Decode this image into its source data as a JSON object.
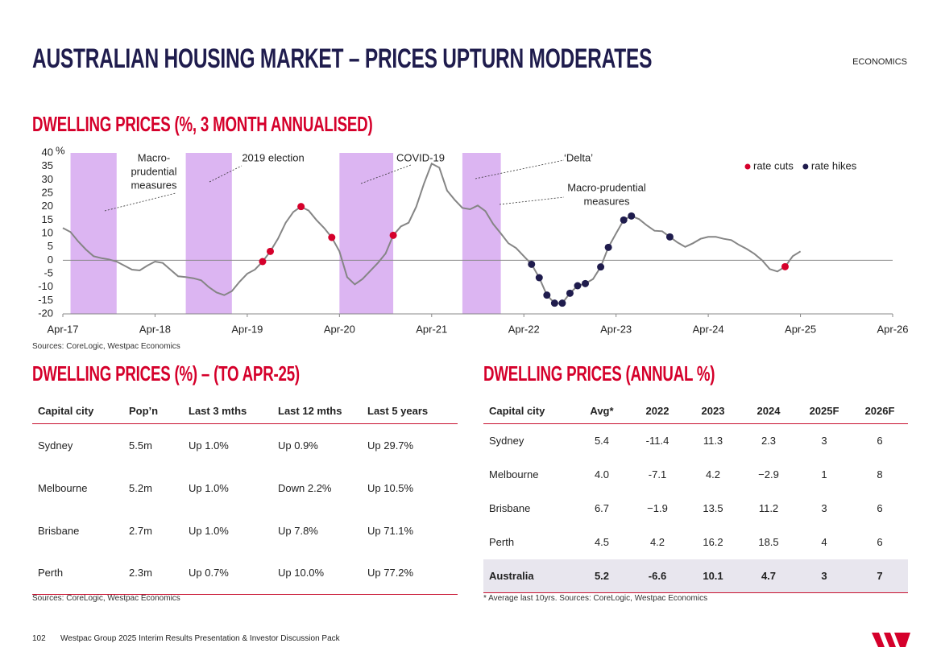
{
  "header": {
    "title": "AUSTRALIAN HOUSING MARKET – PRICES UPTURN MODERATES",
    "section": "ECONOMICS"
  },
  "chart_data": {
    "type": "line",
    "title": "DWELLING PRICES (%, 3 MONTH ANNUALISED)",
    "ylabel": "%",
    "source": "Sources: CoreLogic, Westpac Economics",
    "categories": [
      "Apr-17",
      null,
      null,
      null,
      null,
      null,
      null,
      null,
      null,
      null,
      null,
      null,
      "Apr-18",
      null,
      null,
      null,
      null,
      null,
      null,
      null,
      null,
      null,
      null,
      null,
      "Apr-19",
      null,
      null,
      null,
      null,
      null,
      null,
      null,
      null,
      null,
      null,
      null,
      "Apr-20",
      null,
      null,
      null,
      null,
      null,
      null,
      null,
      null,
      null,
      null,
      null,
      "Apr-21",
      null,
      null,
      null,
      null,
      null,
      null,
      null,
      null,
      null,
      null,
      null,
      "Apr-22",
      null,
      null,
      null,
      null,
      null,
      null,
      null,
      null,
      null,
      null,
      null,
      "Apr-23",
      null,
      null,
      null,
      null,
      null,
      null,
      null,
      null,
      null,
      null,
      null,
      "Apr-24",
      null,
      null,
      null,
      null,
      null,
      null,
      null,
      null,
      null,
      null,
      null,
      "Apr-25",
      null,
      null,
      null,
      null,
      null,
      null,
      null,
      null,
      null,
      null,
      null,
      "Apr-26"
    ],
    "series": [
      {
        "color": "#858585",
        "style": "line",
        "values": [
          12,
          10.5,
          7,
          4,
          1.5,
          0.8,
          0.3,
          -0.5,
          -2,
          -3.5,
          -3.8,
          -2,
          -0.5,
          -1,
          -3.5,
          -6,
          -6.3,
          -6.7,
          -7.5,
          -10,
          -12,
          -13,
          -11.5,
          -8,
          -5,
          -3.5,
          -0.5,
          3.3,
          8,
          14,
          18,
          20,
          18.5,
          15,
          12,
          8.5,
          3.3,
          -6.3,
          -9,
          -7,
          -4,
          -1,
          2.5,
          9.3,
          12.6,
          14,
          20,
          28.5,
          36,
          34.5,
          26,
          22.5,
          19.5,
          19,
          20.4,
          18.3,
          13.5,
          10,
          6.3,
          4.5,
          1.5,
          -1.5,
          -6.5,
          -13,
          -16,
          -16,
          -12.3,
          -9.5,
          -8.7,
          -7,
          -2.5,
          4.8,
          10,
          15,
          16.5,
          15.3,
          13,
          11,
          10.8,
          8.7,
          6.6,
          5,
          6.3,
          8,
          8.7,
          8.7,
          8,
          7.5,
          5.7,
          4.2,
          2.4,
          0,
          -3.3,
          -4.2,
          -2.4,
          1.5,
          3.3,
          null,
          null,
          null,
          null,
          null,
          null,
          null,
          null,
          null,
          null,
          null,
          null
        ]
      },
      {
        "name": "rate cuts",
        "color": "#d5002b",
        "style": "dots",
        "values": [
          null,
          null,
          null,
          null,
          null,
          null,
          null,
          null,
          null,
          null,
          null,
          null,
          null,
          null,
          null,
          null,
          null,
          null,
          null,
          null,
          null,
          null,
          null,
          null,
          null,
          null,
          -0.5,
          3.3,
          null,
          null,
          null,
          20,
          null,
          null,
          null,
          8.5,
          null,
          null,
          null,
          null,
          null,
          null,
          null,
          9.3,
          null,
          null,
          null,
          null,
          null,
          null,
          null,
          null,
          null,
          null,
          null,
          null,
          null,
          null,
          null,
          null,
          null,
          null,
          null,
          null,
          null,
          null,
          null,
          null,
          null,
          null,
          null,
          null,
          null,
          null,
          null,
          null,
          null,
          null,
          null,
          null,
          null,
          null,
          null,
          null,
          null,
          null,
          null,
          null,
          null,
          null,
          null,
          null,
          null,
          null,
          -2.4,
          null,
          null,
          null,
          null,
          null,
          null,
          null,
          null,
          null,
          null,
          null,
          null,
          null,
          null
        ]
      },
      {
        "name": "rate hikes",
        "color": "#1f1c4d",
        "style": "dots",
        "values": [
          null,
          null,
          null,
          null,
          null,
          null,
          null,
          null,
          null,
          null,
          null,
          null,
          null,
          null,
          null,
          null,
          null,
          null,
          null,
          null,
          null,
          null,
          null,
          null,
          null,
          null,
          null,
          null,
          null,
          null,
          null,
          null,
          null,
          null,
          null,
          null,
          null,
          null,
          null,
          null,
          null,
          null,
          null,
          null,
          null,
          null,
          null,
          null,
          null,
          null,
          null,
          null,
          null,
          null,
          null,
          null,
          null,
          null,
          null,
          null,
          null,
          -1.5,
          -6.5,
          -13,
          -16,
          -16,
          -12.3,
          -9.5,
          -8.7,
          null,
          -2.5,
          4.8,
          null,
          15,
          16.5,
          null,
          null,
          null,
          null,
          8.7,
          null,
          null,
          null,
          null,
          null,
          null,
          null,
          null,
          null,
          null,
          null,
          null,
          null,
          null,
          null,
          null,
          null,
          null,
          null,
          null,
          null,
          null,
          null,
          null,
          null,
          null,
          null,
          null,
          null
        ]
      }
    ],
    "highlight_ranges": [
      {
        "from": 1,
        "to": 7
      },
      {
        "from": 16,
        "to": 22
      },
      {
        "from": 36,
        "to": 43
      },
      {
        "from": 52,
        "to": 57
      }
    ],
    "highlight_color": "#dcb5f2",
    "annotations": [
      {
        "lines": [
          "Macro-",
          "prudential",
          "measures"
        ]
      },
      {
        "lines": [
          "2019 election"
        ]
      },
      {
        "lines": [
          "COVID-19"
        ]
      },
      {
        "lines": [
          "‘Delta’"
        ]
      },
      {
        "lines": [
          "Macro-prudential",
          "measures"
        ]
      }
    ],
    "ylim": [
      -20,
      40
    ],
    "yticks": [
      -20,
      -15,
      -10,
      -5,
      0,
      5,
      10,
      15,
      20,
      25,
      30,
      35,
      40
    ],
    "legend": "top-right"
  },
  "table1": {
    "title": "DWELLING PRICES (%) – (TO APR-25)",
    "columns": [
      "Capital city",
      "Pop’n",
      "Last 3 mths",
      "Last 12 mths",
      "Last 5 years"
    ],
    "rows": [
      [
        "Sydney",
        "5.5m",
        "Up 1.0%",
        "Up 0.9%",
        "Up 29.7%"
      ],
      [
        "Melbourne",
        "5.2m",
        "Up 1.0%",
        "Down 2.2%",
        "Up 10.5%"
      ],
      [
        "Brisbane",
        "2.7m",
        "Up 1.0%",
        "Up 7.8%",
        "Up 71.1%"
      ],
      [
        "Perth",
        "2.3m",
        "Up 0.7%",
        "Up 10.0%",
        "Up 77.2%"
      ]
    ],
    "source": "Sources: CoreLogic, Westpac Economics"
  },
  "table2": {
    "title": "DWELLING PRICES (ANNUAL %)",
    "columns": [
      "Capital city",
      "Avg*",
      "2022",
      "2023",
      "2024",
      "2025F",
      "2026F"
    ],
    "rows": [
      [
        "Sydney",
        "5.4",
        "-11.4",
        "11.3",
        "2.3",
        "3",
        "6"
      ],
      [
        "Melbourne",
        "4.0",
        "-7.1",
        "4.2",
        "−2.9",
        "1",
        "8"
      ],
      [
        "Brisbane",
        "6.7",
        "−1.9",
        "13.5",
        "11.2",
        "3",
        "6"
      ],
      [
        "Perth",
        "4.5",
        "4.2",
        "16.2",
        "18.5",
        "4",
        "6"
      ],
      [
        "Australia",
        "5.2",
        "-6.6",
        "10.1",
        "4.7",
        "3",
        "7"
      ]
    ],
    "source": "* Average last 10yrs. Sources: CoreLogic, Westpac Economics"
  },
  "footer": {
    "page": "102",
    "text": "Westpac Group 2025 Interim Results Presentation & Investor Discussion Pack"
  }
}
